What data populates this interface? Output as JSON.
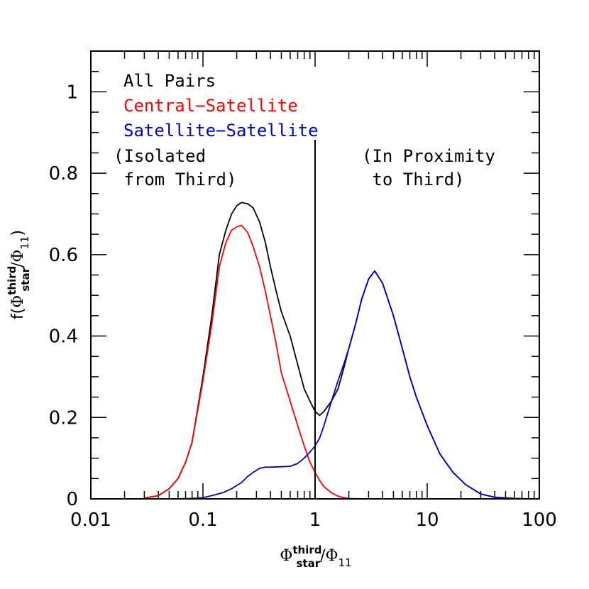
{
  "chart_data": {
    "type": "line",
    "xscale": "log",
    "xlim": [
      0.01,
      100
    ],
    "ylim": [
      0,
      1.1
    ],
    "x_ticks": [
      {
        "value": 0.01,
        "label": "0.01"
      },
      {
        "value": 0.1,
        "label": "0.1"
      },
      {
        "value": 1,
        "label": "1"
      },
      {
        "value": 10,
        "label": "10"
      },
      {
        "value": 100,
        "label": "100"
      }
    ],
    "y_ticks": [
      {
        "value": 0,
        "label": "0"
      },
      {
        "value": 0.2,
        "label": "0.2"
      },
      {
        "value": 0.4,
        "label": "0.4"
      },
      {
        "value": 0.6,
        "label": "0.6"
      },
      {
        "value": 0.8,
        "label": "0.8"
      },
      {
        "value": 1,
        "label": "1"
      }
    ],
    "xlabel": {
      "main": "Φ",
      "sup": "third",
      "sub": "star",
      "rest": "/Φ",
      "rest_sub": "11"
    },
    "ylabel": {
      "pre": "f(",
      "main": "Φ",
      "sup": "third",
      "sub": "star",
      "rest": "/Φ",
      "rest_sub": "11",
      "post": ")"
    },
    "grid": false,
    "legend_position": "top-left",
    "vline": 1,
    "annotations": [
      {
        "lines": [
          "(Isolated",
          " from Third)"
        ],
        "side": "left"
      },
      {
        "lines": [
          "(In Proximity",
          " to Third)"
        ],
        "side": "right"
      }
    ],
    "series": [
      {
        "name": "All Pairs",
        "color": "#000000",
        "x": [
          0.03,
          0.04,
          0.05,
          0.06,
          0.07,
          0.08,
          0.1,
          0.12,
          0.14,
          0.16,
          0.18,
          0.2,
          0.22,
          0.25,
          0.28,
          0.32,
          0.36,
          0.4,
          0.45,
          0.5,
          0.6,
          0.7,
          0.8,
          0.9,
          1.0,
          1.1,
          1.2,
          1.4,
          1.6,
          1.8,
          2.0,
          2.3,
          2.6,
          3.0,
          3.4,
          4.0,
          5.0,
          6.0,
          7.0,
          8.0,
          10.0,
          13.0,
          17.0,
          22.0,
          30.0,
          40.0,
          60.0,
          80.0
        ],
        "y": [
          0.002,
          0.008,
          0.025,
          0.05,
          0.09,
          0.14,
          0.3,
          0.45,
          0.6,
          0.66,
          0.7,
          0.72,
          0.728,
          0.725,
          0.715,
          0.68,
          0.63,
          0.57,
          0.51,
          0.46,
          0.4,
          0.33,
          0.27,
          0.24,
          0.215,
          0.205,
          0.215,
          0.24,
          0.27,
          0.32,
          0.37,
          0.43,
          0.49,
          0.54,
          0.56,
          0.53,
          0.45,
          0.37,
          0.3,
          0.25,
          0.18,
          0.11,
          0.065,
          0.035,
          0.012,
          0.004,
          0.001,
          0.0
        ]
      },
      {
        "name": "Central−Satellite",
        "color": "#ff0000",
        "x": [
          0.03,
          0.04,
          0.05,
          0.06,
          0.07,
          0.08,
          0.1,
          0.12,
          0.14,
          0.16,
          0.18,
          0.2,
          0.22,
          0.25,
          0.28,
          0.32,
          0.36,
          0.4,
          0.45,
          0.5,
          0.6,
          0.7,
          0.8,
          0.9,
          1.0,
          1.1,
          1.2,
          1.4,
          1.6,
          1.8,
          2.0,
          2.5,
          3.0
        ],
        "y": [
          0.002,
          0.008,
          0.025,
          0.05,
          0.09,
          0.14,
          0.29,
          0.43,
          0.57,
          0.63,
          0.66,
          0.668,
          0.672,
          0.655,
          0.62,
          0.57,
          0.51,
          0.45,
          0.38,
          0.31,
          0.24,
          0.18,
          0.13,
          0.09,
          0.065,
          0.045,
          0.03,
          0.015,
          0.007,
          0.003,
          0.001,
          0.0,
          0.0
        ]
      },
      {
        "name": "Satellite−Satellite",
        "color": "#0000cc",
        "x": [
          0.06,
          0.08,
          0.1,
          0.12,
          0.15,
          0.18,
          0.2,
          0.22,
          0.25,
          0.28,
          0.32,
          0.36,
          0.4,
          0.5,
          0.6,
          0.7,
          0.8,
          0.9,
          1.0,
          1.1,
          1.2,
          1.4,
          1.6,
          1.8,
          2.0,
          2.3,
          2.6,
          3.0,
          3.4,
          4.0,
          5.0,
          6.0,
          7.0,
          8.0,
          10.0,
          13.0,
          17.0,
          22.0,
          30.0,
          40.0,
          60.0,
          80.0
        ],
        "y": [
          0.0,
          0.001,
          0.003,
          0.008,
          0.015,
          0.025,
          0.033,
          0.04,
          0.055,
          0.065,
          0.075,
          0.078,
          0.078,
          0.079,
          0.08,
          0.087,
          0.1,
          0.115,
          0.13,
          0.15,
          0.18,
          0.24,
          0.29,
          0.33,
          0.37,
          0.43,
          0.49,
          0.54,
          0.56,
          0.53,
          0.45,
          0.37,
          0.3,
          0.25,
          0.18,
          0.11,
          0.065,
          0.035,
          0.012,
          0.004,
          0.001,
          0.0
        ]
      }
    ]
  }
}
